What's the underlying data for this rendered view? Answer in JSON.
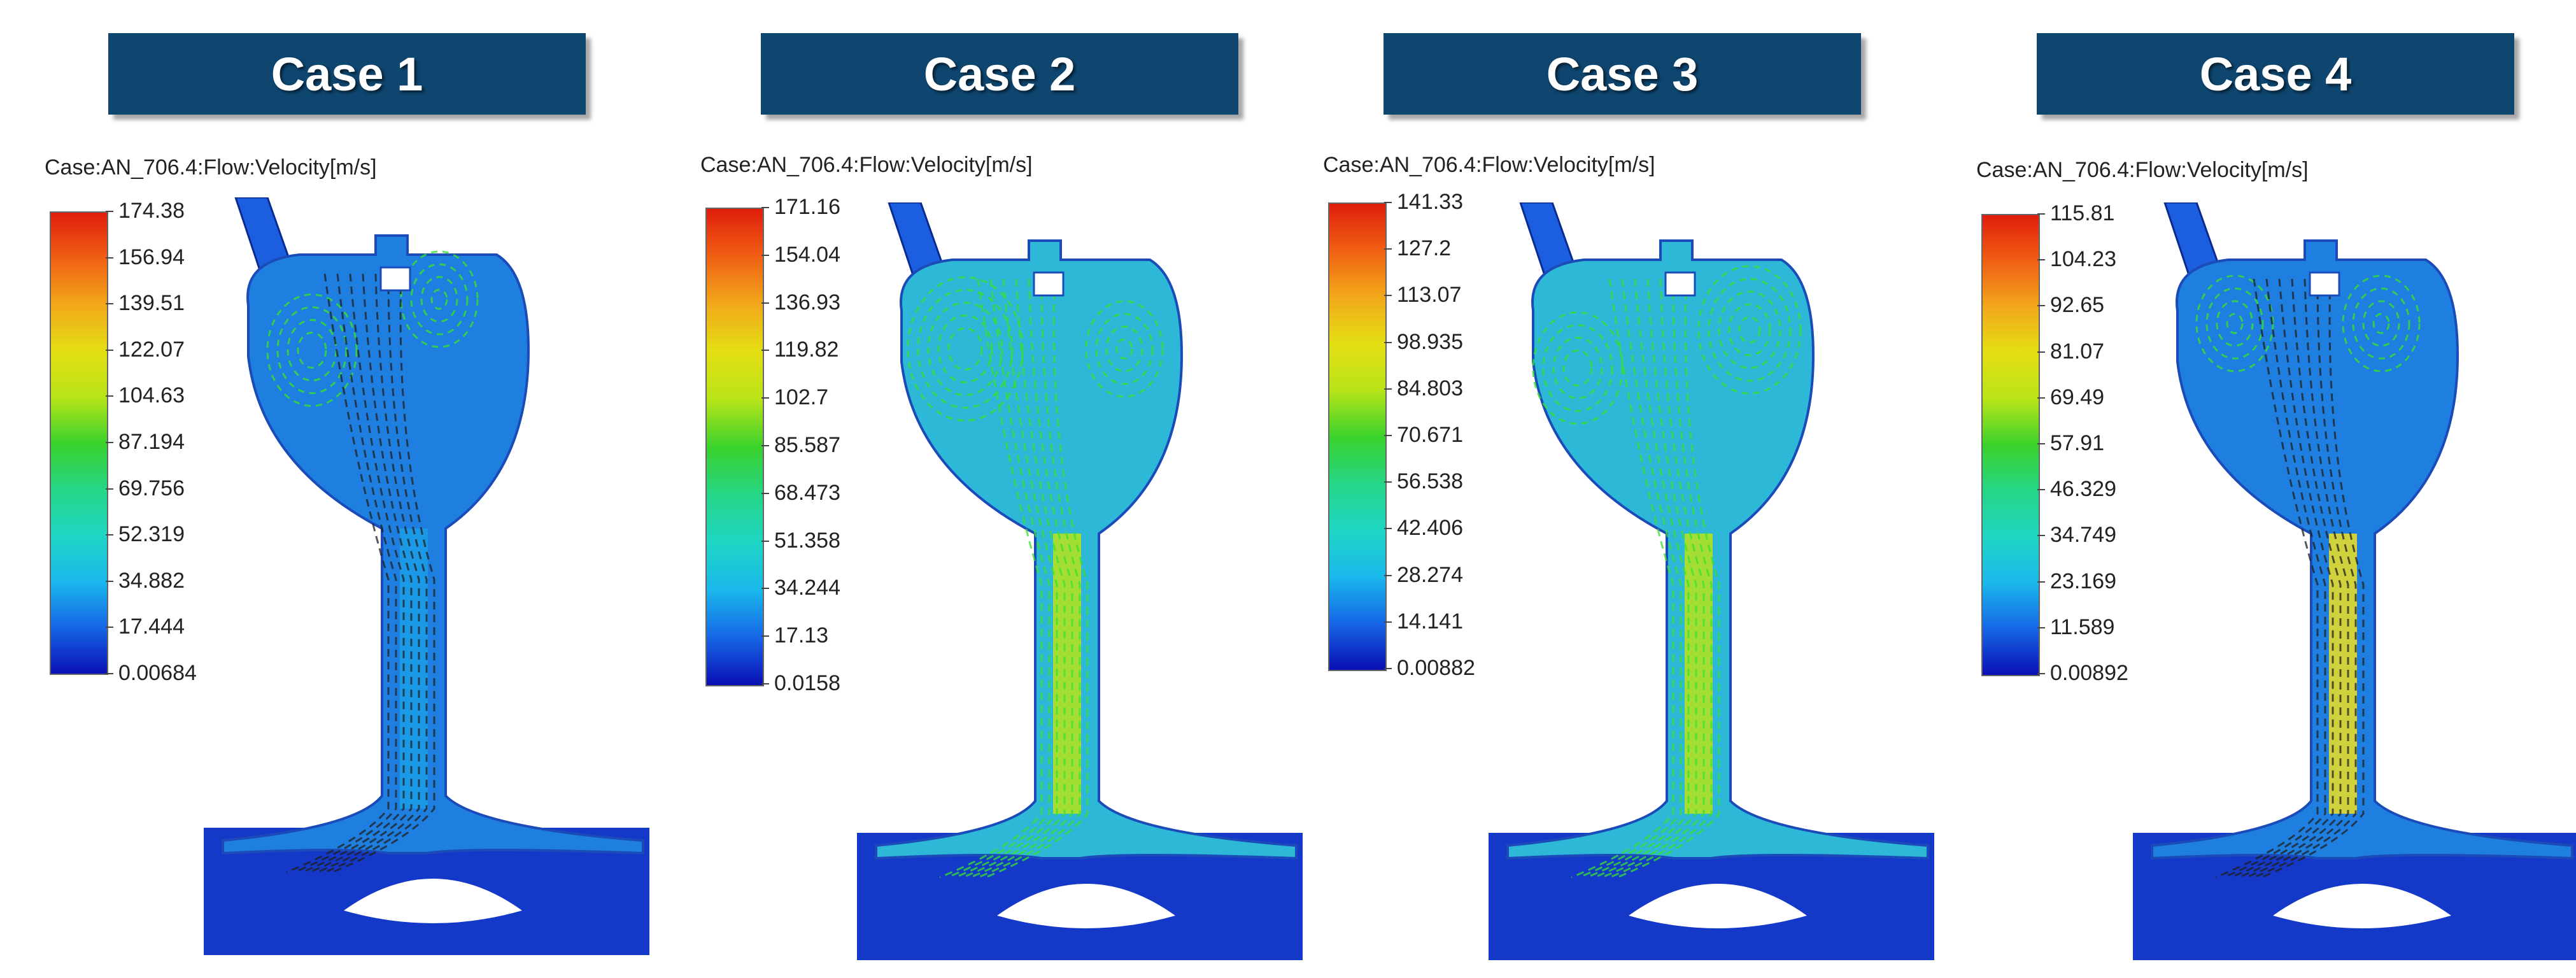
{
  "panels": [
    {
      "title": "Case 1",
      "legend_title": "Case:AN_706.4:Flow:Velocity[m/s]",
      "ticks": [
        "174.38",
        "156.94",
        "139.51",
        "122.07",
        "104.63",
        "87.194",
        "69.756",
        "52.319",
        "34.882",
        "17.444",
        "0.00684"
      ]
    },
    {
      "title": "Case 2",
      "legend_title": "Case:AN_706.4:Flow:Velocity[m/s]",
      "ticks": [
        "171.16",
        "154.04",
        "136.93",
        "119.82",
        "102.7",
        "85.587",
        "68.473",
        "51.358",
        "34.244",
        "17.13",
        "0.0158"
      ]
    },
    {
      "title": "Case 3",
      "legend_title": "Case:AN_706.4:Flow:Velocity[m/s]",
      "ticks": [
        "141.33",
        "127.2",
        "113.07",
        "98.935",
        "84.803",
        "70.671",
        "56.538",
        "42.406",
        "28.274",
        "14.141",
        "0.00882"
      ]
    },
    {
      "title": "Case 4",
      "legend_title": "Case:AN_706.4:Flow:Velocity[m/s]",
      "ticks": [
        "115.81",
        "104.23",
        "92.65",
        "81.07",
        "69.49",
        "57.91",
        "46.329",
        "34.749",
        "23.169",
        "11.589",
        "0.00892"
      ]
    }
  ],
  "colors": {
    "header_bg": "#0e4670",
    "body_fill": "#1e7fe0",
    "high_velocity": "#f0e020",
    "streamline": "#38e030"
  }
}
